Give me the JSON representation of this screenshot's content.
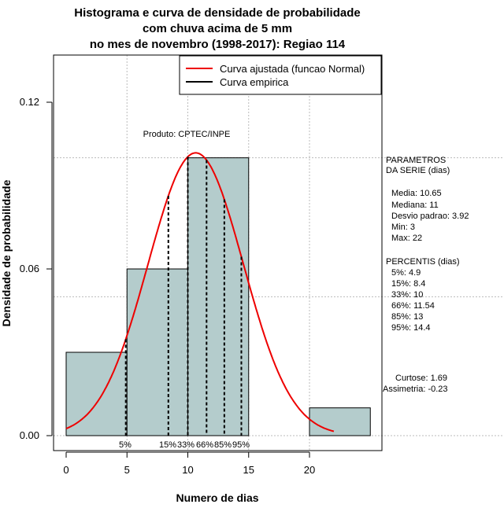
{
  "chart_data": {
    "type": "bar",
    "title": [
      "Histograma e curva de densidade de probabilidade",
      "com chuva acima de 5 mm",
      "no mes de novembro (1998-2017): Regiao 114"
    ],
    "xlabel": "Numero de dias",
    "ylabel": "Densidade de probabilidade",
    "xlim": [
      -1,
      25
    ],
    "ylim": [
      0,
      0.135
    ],
    "x_ticks": [
      0,
      5,
      10,
      15,
      20
    ],
    "y_ticks": [
      0.0,
      0.06,
      0.12
    ],
    "y_tick_labels": [
      "0.00",
      "0.06",
      "0.12"
    ],
    "grid_y": [
      0.05,
      0.1
    ],
    "grid_x": [
      5,
      10,
      15,
      20
    ],
    "bins": [
      {
        "start": 0,
        "end": 5,
        "density": 0.03
      },
      {
        "start": 5,
        "end": 10,
        "density": 0.06
      },
      {
        "start": 10,
        "end": 15,
        "density": 0.1
      },
      {
        "start": 15,
        "end": 20,
        "density": 0.0
      },
      {
        "start": 20,
        "end": 25,
        "density": 0.01
      }
    ],
    "bar_color": "#b4cccc",
    "normal_curve": {
      "mean": 10.65,
      "sd": 3.92,
      "x_range": [
        0,
        22
      ],
      "color": "#ee0000"
    },
    "percentile_lines": [
      {
        "label": "5%",
        "value": 4.9
      },
      {
        "label": "15%",
        "value": 8.4
      },
      {
        "label": "33%",
        "value": 10
      },
      {
        "label": "66%",
        "value": 11.54
      },
      {
        "label": "85%",
        "value": 13
      },
      {
        "label": "95%",
        "value": 14.4
      }
    ],
    "legend": {
      "position": "top-right",
      "entries": [
        {
          "label": "Curva ajustada (funcao Normal)",
          "color": "#ee0000"
        },
        {
          "label": "Curva empirica",
          "color": "#000000"
        }
      ]
    },
    "annotation": "Produto: CPTEC/INPE",
    "side_text": [
      "PARAMETROS",
      "DA SERIE (dias)",
      "  Media: 10.65",
      "  Mediana: 11",
      "  Desvio padrao: 3.92",
      "  Min: 3",
      "  Max: 22",
      "PERCENTIS (dias)",
      "  5%: 4.9",
      "  15%: 8.4",
      "  33%: 10",
      "  66%: 11.54",
      "  85%: 13",
      "  95%: 14.4",
      "Curtose: 1.69",
      "Assimetria: -0.23"
    ]
  }
}
